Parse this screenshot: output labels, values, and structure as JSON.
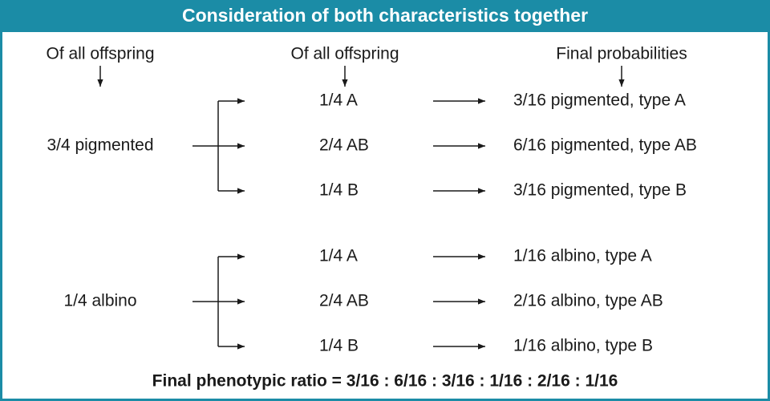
{
  "header": {
    "title": "Consideration of both characteristics together"
  },
  "columns": [
    "Of all offspring",
    "Of all offspring",
    "Final probabilities"
  ],
  "groups": [
    {
      "label": "3/4 pigmented",
      "branches": [
        {
          "label": "1/4 A",
          "result": "3/16 pigmented, type A"
        },
        {
          "label": "2/4 AB",
          "result": "6/16 pigmented, type AB"
        },
        {
          "label": "1/4 B",
          "result": "3/16 pigmented, type B"
        }
      ]
    },
    {
      "label": "1/4 albino",
      "branches": [
        {
          "label": "1/4 A",
          "result": "1/16 albino, type A"
        },
        {
          "label": "2/4 AB",
          "result": "2/16 albino, type AB"
        },
        {
          "label": "1/4 B",
          "result": "1/16 albino, type B"
        }
      ]
    }
  ],
  "footer": "Final phenotypic ratio = 3/16 : 6/16 : 3/16 : 1/16 : 2/16 : 1/16"
}
